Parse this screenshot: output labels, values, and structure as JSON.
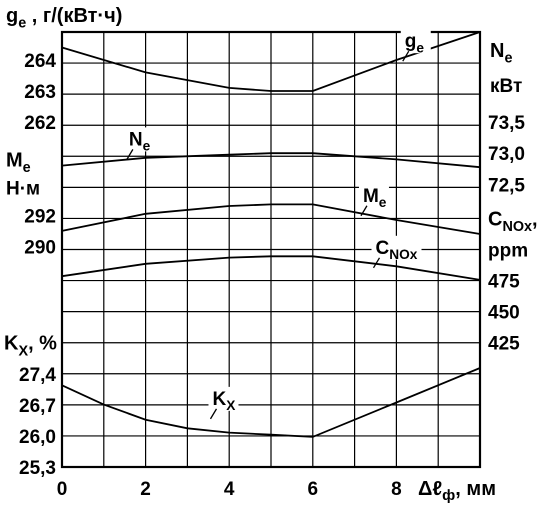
{
  "chart_data": {
    "type": "line",
    "x": {
      "label_symbol": "Δℓ",
      "label_sub": "ф",
      "label_unit": ", мм",
      "ticks": [
        "0",
        "2",
        "4",
        "6",
        "8"
      ],
      "range": [
        0,
        10
      ]
    },
    "axes": {
      "ge": {
        "label": "g",
        "label_sub": "e",
        "label_rest": " , г/(кВт·ч)",
        "side": "left",
        "ticks": [
          "264",
          "263",
          "262"
        ],
        "range": [
          261,
          264.6
        ]
      },
      "Ne": {
        "label": "N",
        "label_sub": "e",
        "unit": "кВт",
        "side": "right",
        "ticks": [
          "73,5",
          "73,0",
          "72,5"
        ],
        "range": [
          72.5,
          74.6
        ]
      },
      "Me": {
        "label": "M",
        "label_sub": "e",
        "unit": "Н·м",
        "side": "left",
        "ticks": [
          "292",
          "290"
        ],
        "range": [
          288,
          296
        ]
      },
      "CNOx": {
        "label": "C",
        "label_sub": "NOx",
        "label_rest": ",",
        "unit": "ppm",
        "side": "right",
        "ticks": [
          "475",
          "450",
          "425"
        ],
        "range": [
          400,
          500
        ]
      },
      "Kx": {
        "label": "K",
        "label_sub": "X",
        "label_rest": ", %",
        "side": "left",
        "ticks": [
          "27,4",
          "26,7",
          "26,0",
          "25,3"
        ],
        "range": [
          25.3,
          27.9
        ]
      }
    },
    "series": [
      {
        "axis": "ge",
        "name": "g",
        "name_sub": "e",
        "x": [
          0,
          2,
          4,
          5,
          6,
          8,
          10
        ],
        "y": [
          264.1,
          263.3,
          262.8,
          262.7,
          262.7,
          263.7,
          264.6
        ]
      },
      {
        "axis": "Ne",
        "name": "N",
        "name_sub": "e",
        "x": [
          0,
          2,
          4,
          5,
          6,
          8,
          10
        ],
        "y": [
          73.0,
          73.25,
          73.35,
          73.4,
          73.4,
          73.2,
          72.95
        ]
      },
      {
        "axis": "Me",
        "name": "M",
        "name_sub": "e",
        "x": [
          0,
          2,
          4,
          5,
          6,
          8,
          10
        ],
        "y": [
          290.6,
          291.7,
          292.2,
          292.3,
          292.3,
          291.3,
          290.4
        ]
      },
      {
        "axis": "CNOx",
        "name": "C",
        "name_sub": "NOx",
        "x": [
          0,
          2,
          4,
          5,
          6,
          8,
          10
        ],
        "y": [
          436,
          446,
          451,
          452,
          452,
          444,
          433
        ]
      },
      {
        "axis": "Kx",
        "name": "K",
        "name_sub": "X",
        "x": [
          0,
          1,
          2,
          3,
          4,
          5,
          6,
          8,
          10
        ],
        "y": [
          27.2,
          26.75,
          26.4,
          26.2,
          26.1,
          26.05,
          26.0,
          26.8,
          27.6
        ]
      }
    ],
    "grid": true
  }
}
